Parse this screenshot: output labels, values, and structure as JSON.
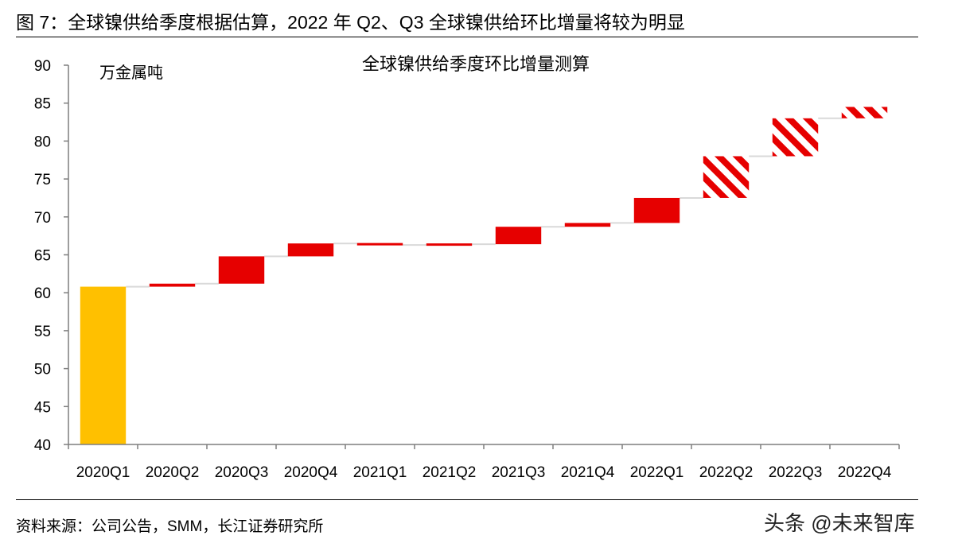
{
  "figure": {
    "title": "图 7：全球镍供给季度根据估算，2022 年 Q2、Q3 全球镍供给环比增量将较为明显",
    "source": "资料来源：公司公告，SMM，长江证券研究所",
    "watermark": "头条 @未来智库"
  },
  "chart_data": {
    "type": "bar",
    "subtype": "waterfall",
    "title": "全球镍供给季度环比增量测算",
    "ylabel": "万金属吨",
    "xlabel": "",
    "categories": [
      "2020Q1",
      "2020Q2",
      "2020Q3",
      "2020Q4",
      "2021Q1",
      "2021Q2",
      "2021Q3",
      "2021Q4",
      "2022Q1",
      "2022Q2",
      "2022Q3",
      "2022Q4"
    ],
    "base": 40,
    "start_value": 60.8,
    "increments": [
      null,
      0.4,
      3.6,
      1.7,
      -0.2,
      0.1,
      2.3,
      0.5,
      3.3,
      5.5,
      5.0,
      1.5
    ],
    "estimated": [
      false,
      false,
      false,
      false,
      false,
      false,
      false,
      false,
      false,
      true,
      true,
      true
    ],
    "ylim": [
      40,
      90
    ],
    "yticks": [
      40,
      45,
      50,
      55,
      60,
      65,
      70,
      75,
      80,
      85,
      90
    ],
    "grid": false,
    "legend": "none",
    "colors": {
      "start": "#FFC000",
      "increment": "#E60000",
      "estimate_stripe": "#E60000",
      "connector": "#D9D9D9",
      "axis": "#7F7F7F"
    }
  }
}
